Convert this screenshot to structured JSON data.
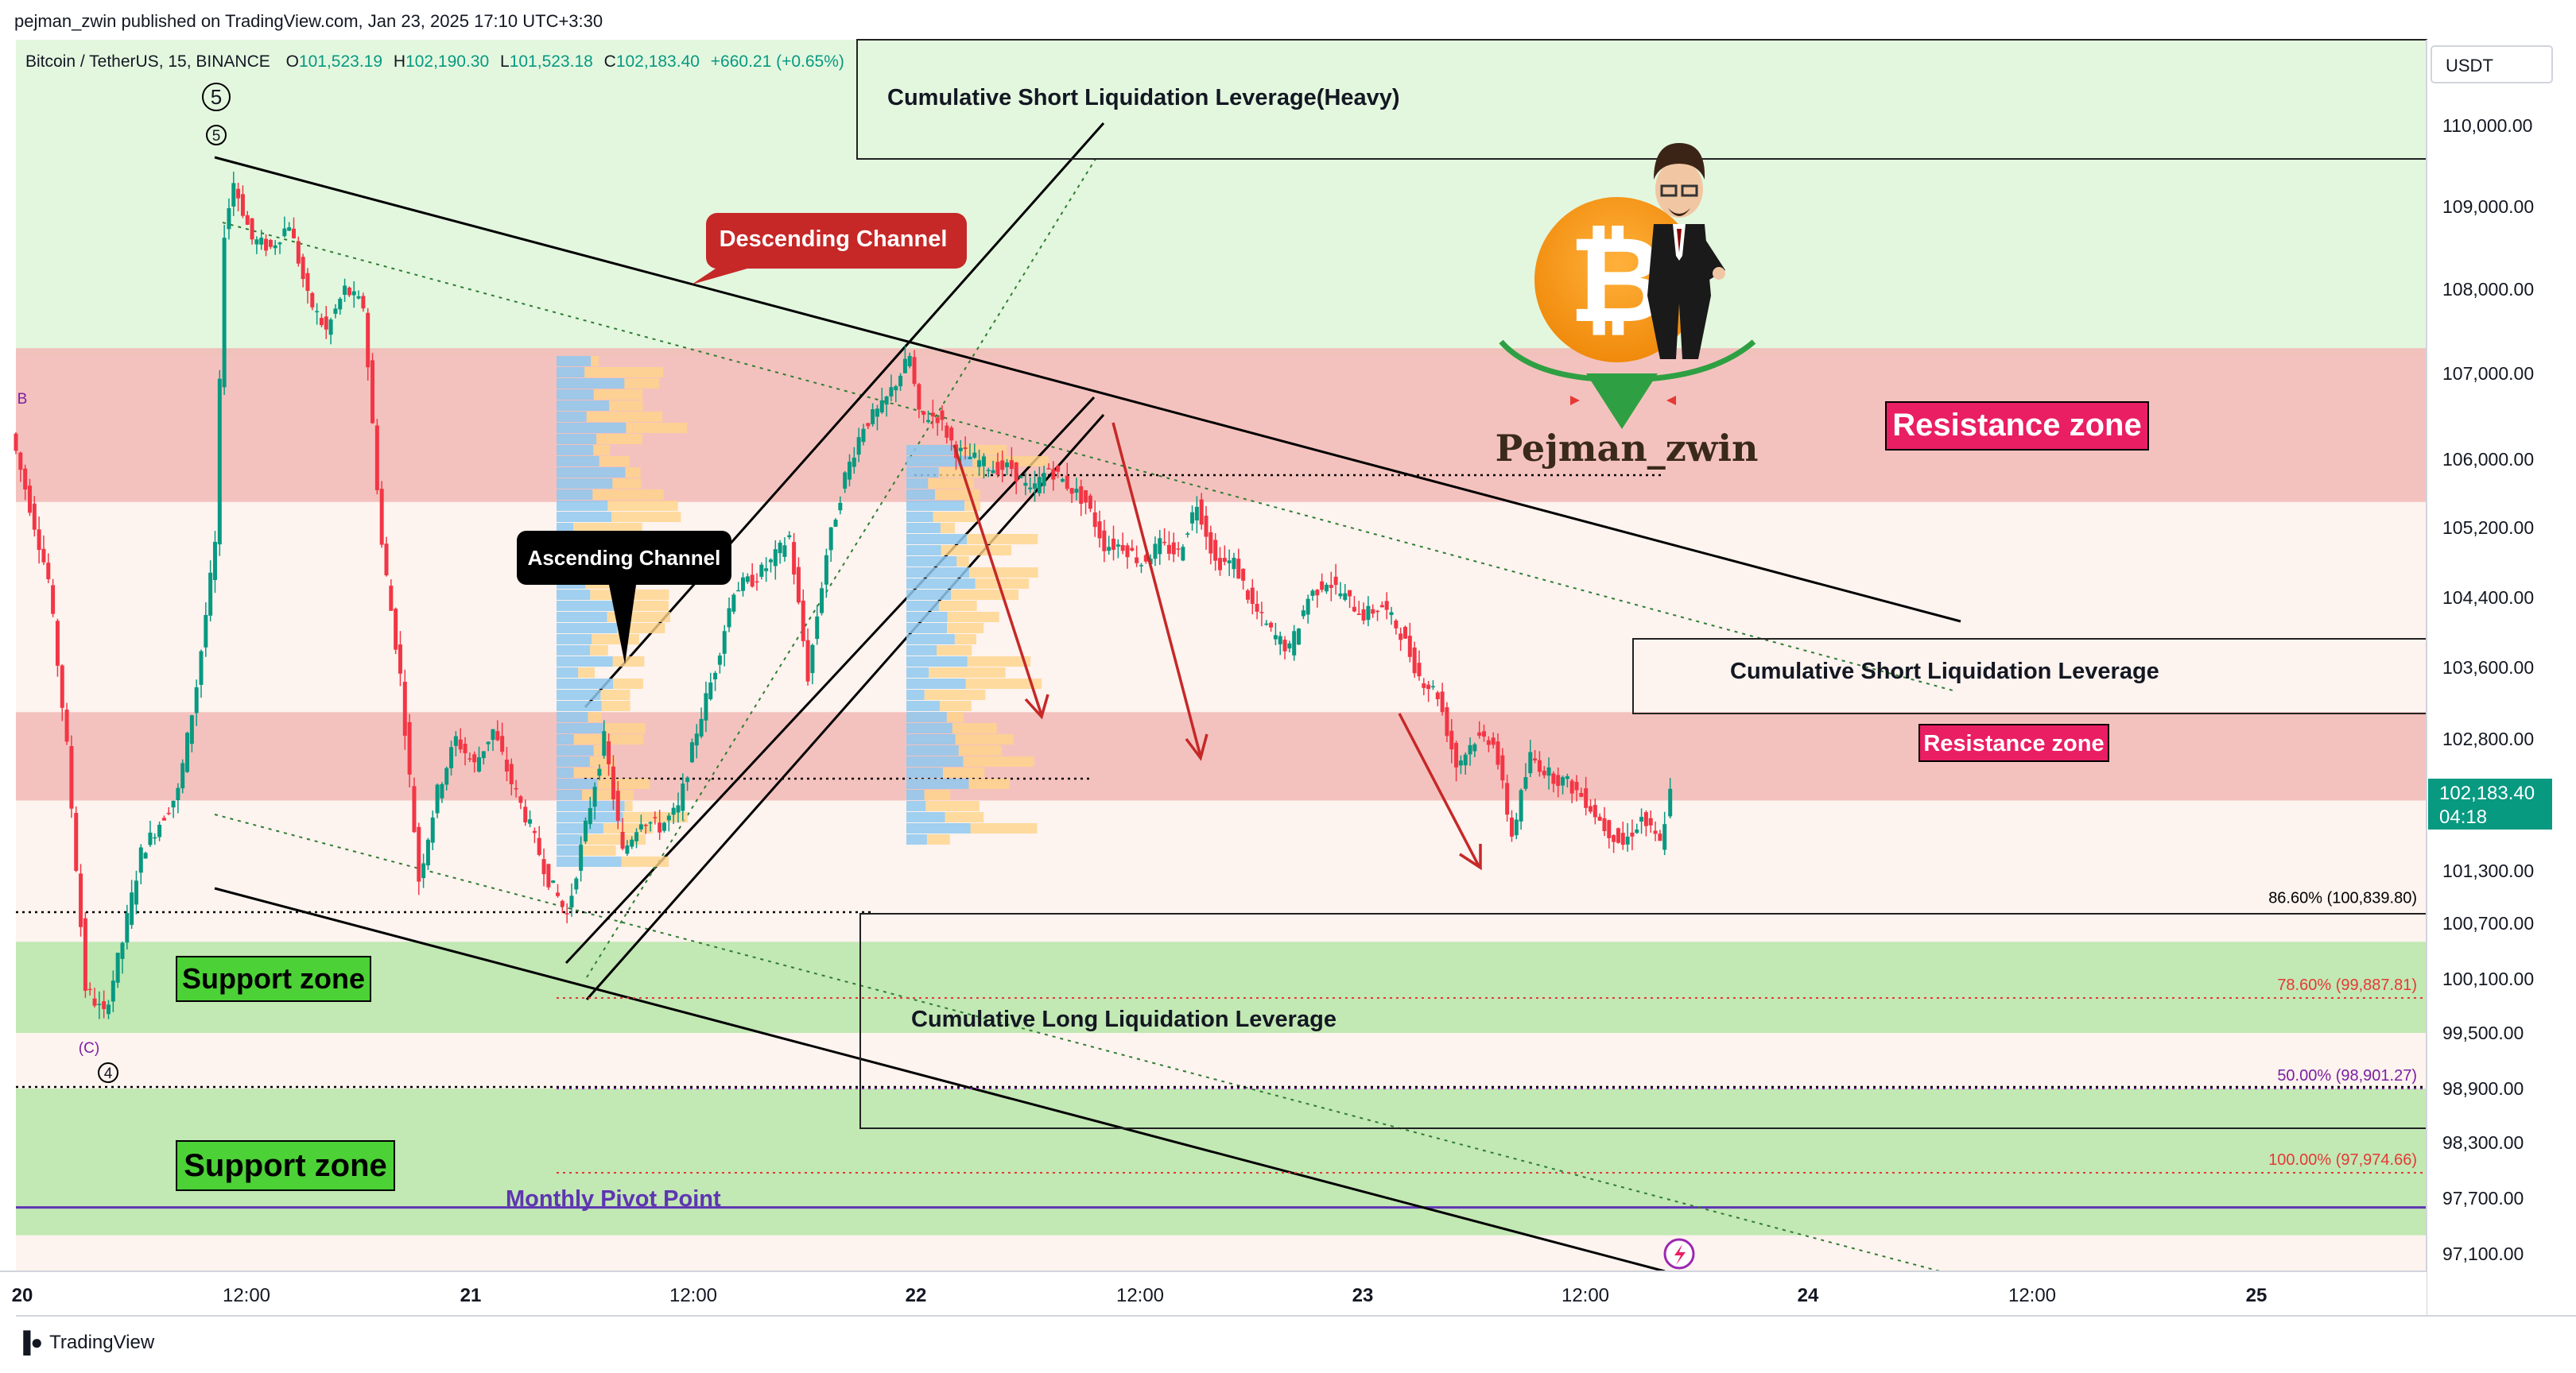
{
  "publisher": "pejman_zwin published on TradingView.com, Jan 23, 2025 17:10 UTC+3:30",
  "symbol": {
    "name": "Bitcoin / TetherUS, 15, BINANCE",
    "o_label": "O",
    "o": "101,523.19",
    "h_label": "H",
    "h": "102,190.30",
    "l_label": "L",
    "l": "101,523.18",
    "c_label": "C",
    "c": "102,183.40",
    "change": "+660.21 (+0.65%)"
  },
  "currency": "USDT",
  "branding": {
    "footer": "TradingView",
    "author_logo": "Pejman_zwin"
  },
  "price_tag": {
    "value": "102,183.40",
    "countdown": "04:18"
  },
  "chart_data": {
    "type": "candlestick",
    "y_axis": {
      "ticks": [
        "110,000.00",
        "109,000.00",
        "108,000.00",
        "107,000.00",
        "106,000.00",
        "105,200.00",
        "104,400.00",
        "103,600.00",
        "102,800.00",
        "101,300.00",
        "100,700.00",
        "100,100.00",
        "99,500.00",
        "98,900.00",
        "98,300.00",
        "97,700.00",
        "97,100.00"
      ],
      "tick_values": [
        110000,
        109000,
        108000,
        107000,
        106000,
        105200,
        104400,
        103600,
        102800,
        101300,
        100700,
        100100,
        99500,
        98900,
        98300,
        97700,
        97100
      ],
      "range": [
        96700,
        110800
      ]
    },
    "x_axis": {
      "ticks": [
        "20",
        "12:00",
        "21",
        "12:00",
        "22",
        "12:00",
        "23",
        "12:00",
        "24",
        "12:00",
        "25"
      ],
      "hours": [
        0,
        12,
        24,
        36,
        48,
        60,
        72,
        84,
        96,
        108,
        120
      ],
      "range": [
        0,
        130
      ]
    },
    "ohlc_path": [
      [
        0,
        106300
      ],
      [
        2,
        104600
      ],
      [
        3,
        102700
      ],
      [
        4,
        100000
      ],
      [
        5,
        99700
      ],
      [
        6,
        100500
      ],
      [
        7,
        101500
      ],
      [
        9,
        102200
      ],
      [
        10,
        103400
      ],
      [
        11,
        105000
      ],
      [
        11.5,
        108700
      ],
      [
        12,
        109300
      ],
      [
        13,
        108600
      ],
      [
        14,
        108500
      ],
      [
        15,
        108800
      ],
      [
        16,
        107900
      ],
      [
        17,
        107500
      ],
      [
        18,
        108000
      ],
      [
        19,
        107800
      ],
      [
        20,
        105000
      ],
      [
        21,
        103500
      ],
      [
        22,
        101200
      ],
      [
        23,
        102200
      ],
      [
        24,
        102800
      ],
      [
        25,
        102500
      ],
      [
        26,
        102900
      ],
      [
        27,
        102300
      ],
      [
        28,
        101800
      ],
      [
        29,
        101200
      ],
      [
        30,
        100800
      ],
      [
        31,
        101800
      ],
      [
        32,
        102800
      ],
      [
        33,
        101500
      ],
      [
        34,
        101900
      ],
      [
        35,
        101800
      ],
      [
        36,
        102000
      ],
      [
        37,
        102900
      ],
      [
        38,
        103600
      ],
      [
        39,
        104500
      ],
      [
        40,
        104600
      ],
      [
        41,
        104800
      ],
      [
        42,
        105100
      ],
      [
        43,
        103500
      ],
      [
        44,
        104900
      ],
      [
        45,
        105800
      ],
      [
        46,
        106400
      ],
      [
        47,
        106600
      ],
      [
        48,
        107000
      ],
      [
        48.5,
        107200
      ],
      [
        49,
        106500
      ],
      [
        50,
        106500
      ],
      [
        51,
        106100
      ],
      [
        52,
        106000
      ],
      [
        53,
        105900
      ],
      [
        54,
        105900
      ],
      [
        55,
        105600
      ],
      [
        56,
        105900
      ],
      [
        57,
        105700
      ],
      [
        58,
        105500
      ],
      [
        59,
        105000
      ],
      [
        60,
        105000
      ],
      [
        61,
        104800
      ],
      [
        62,
        105000
      ],
      [
        63,
        104900
      ],
      [
        64,
        105500
      ],
      [
        65,
        104800
      ],
      [
        66,
        104800
      ],
      [
        67,
        104300
      ],
      [
        68,
        104000
      ],
      [
        69,
        103800
      ],
      [
        70,
        104400
      ],
      [
        71,
        104600
      ],
      [
        72,
        104400
      ],
      [
        73,
        104200
      ],
      [
        74,
        104300
      ],
      [
        75,
        104000
      ],
      [
        76,
        103500
      ],
      [
        77,
        103300
      ],
      [
        78,
        102500
      ],
      [
        79,
        102800
      ],
      [
        80,
        102800
      ],
      [
        81,
        101700
      ],
      [
        82,
        102600
      ],
      [
        83,
        102400
      ],
      [
        84,
        102300
      ],
      [
        85,
        102100
      ],
      [
        86,
        101800
      ],
      [
        87,
        101600
      ],
      [
        88,
        101900
      ],
      [
        89,
        101600
      ],
      [
        89.6,
        102180
      ]
    ]
  },
  "zones": {
    "resistance_label": "Resistance zone",
    "support_label": "Support zone",
    "resistance": [
      [
        105500,
        107300
      ],
      [
        102100,
        103100
      ]
    ],
    "support": [
      [
        99500,
        100500
      ],
      [
        97300,
        98900
      ]
    ]
  },
  "annotations": {
    "descending_channel": "Descending Channel",
    "ascending_channel": "Ascending Channel",
    "short_liq_heavy": "Cumulative Short Liquidation Leverage(Heavy)",
    "short_liq": "Cumulative Short Liquidation Leverage",
    "long_liq": "Cumulative Long Liquidation Leverage",
    "monthly_pivot": "Monthly Pivot Point"
  },
  "fib_levels": [
    {
      "label": "86.60% (100,839.80)",
      "value": 100839.8,
      "color": "#000000"
    },
    {
      "label": "78.60% (99,887.81)",
      "value": 99887.81,
      "color": "#e53935"
    },
    {
      "label": "50.00% (98,901.27)",
      "value": 98901.27,
      "color": "#7b1fa2"
    },
    {
      "label": "100.00% (97,974.66)",
      "value": 97974.66,
      "color": "#e53935"
    }
  ],
  "pivot_value": 97600,
  "wave_labels": [
    "5",
    "5",
    "(C)",
    "4",
    "B"
  ],
  "colors": {
    "up": "#089981",
    "down": "#f23645",
    "accent": "#e91e63"
  }
}
